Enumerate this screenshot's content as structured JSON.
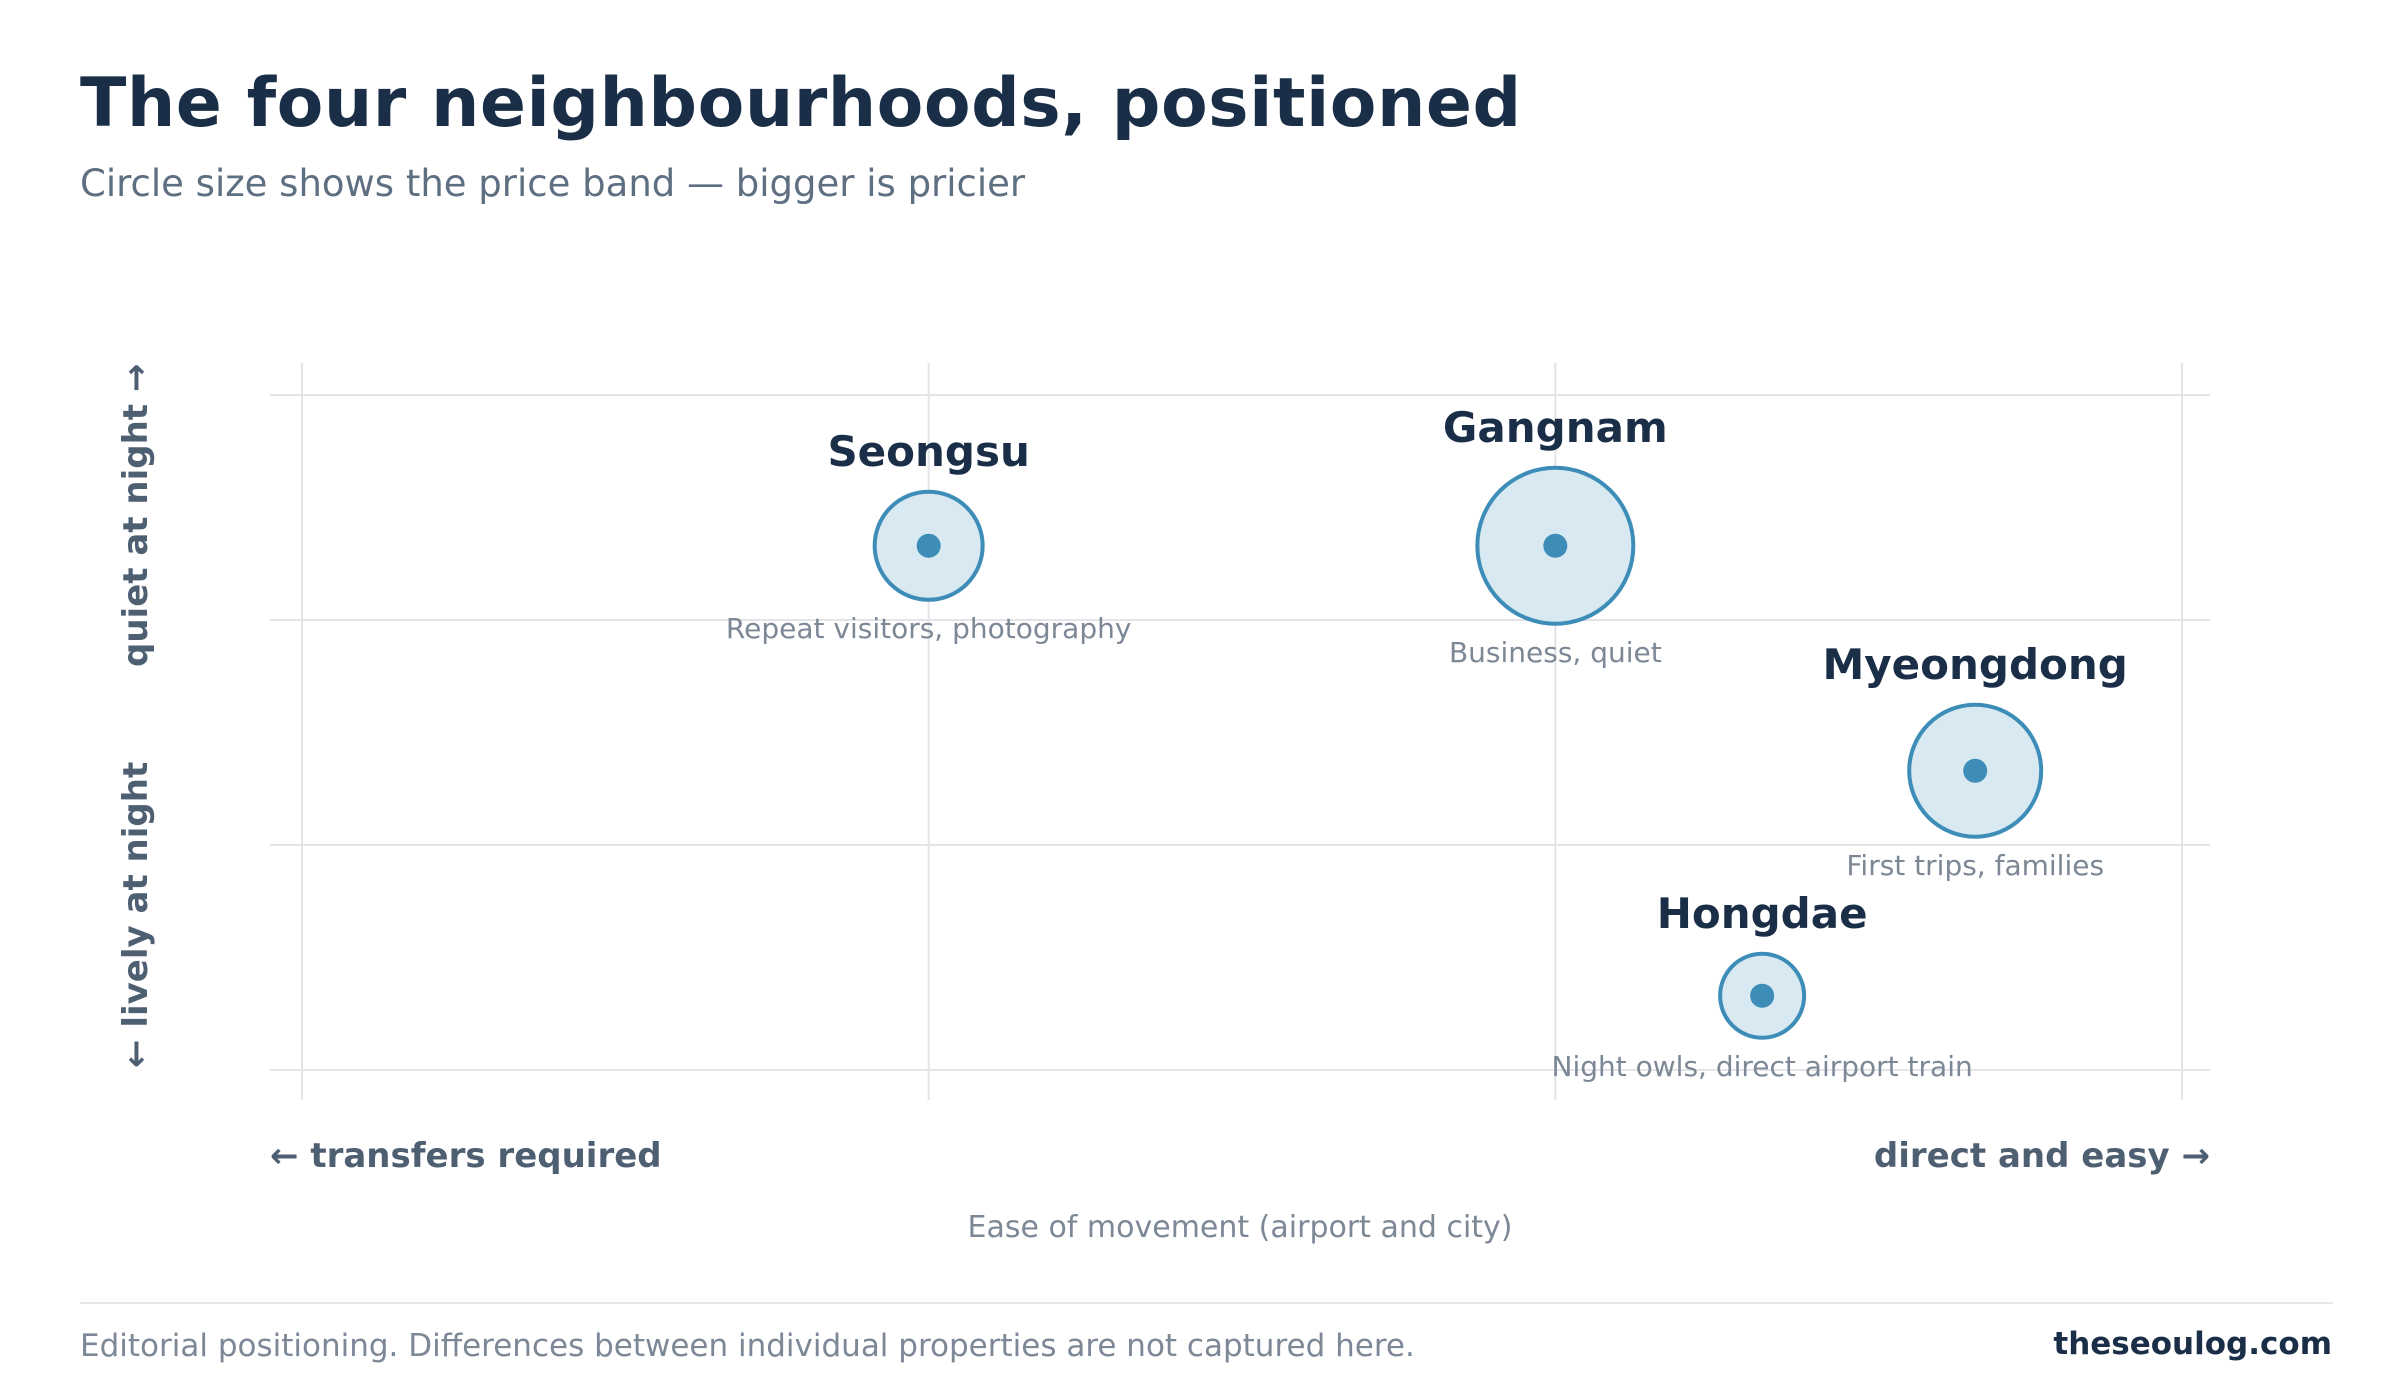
{
  "header": {
    "title": "The four neighbourhoods, positioned",
    "subtitle": "Circle size shows the price band — bigger is pricier"
  },
  "chart_data": {
    "type": "scatter",
    "title": "The four neighbourhoods, positioned",
    "subtitle": "Circle size shows the price band — bigger is pricier",
    "xlabel": "Ease of movement (airport and city)",
    "x_axis_ends": {
      "low": "← transfers required",
      "high": "direct and easy →"
    },
    "y_axis_ends": {
      "low": "← lively at night",
      "high": "quiet at night →"
    },
    "xlim": [
      0,
      3
    ],
    "ylim": [
      0,
      3
    ],
    "grid": true,
    "points": [
      {
        "name": "Seongsu",
        "note": "Repeat visitors, photography",
        "x": 1.0,
        "y": 2.33,
        "price_band": 2
      },
      {
        "name": "Gangnam",
        "note": "Business, quiet",
        "x": 2.0,
        "y": 2.33,
        "price_band": 4
      },
      {
        "name": "Myeongdong",
        "note": "First trips, families",
        "x": 2.67,
        "y": 1.33,
        "price_band": 3
      },
      {
        "name": "Hongdae",
        "note": "Night owls, direct airport train",
        "x": 2.33,
        "y": 0.33,
        "price_band": 1
      }
    ],
    "colors": {
      "bubble_fill": "#d8e9f1",
      "bubble_stroke": "#3d8db8",
      "bubble_center": "#3d8db8",
      "grid": "#e2e4e7"
    }
  },
  "footer": {
    "note": "Editorial positioning. Differences between individual properties are not captured here.",
    "brand": "theseoulog.com"
  }
}
